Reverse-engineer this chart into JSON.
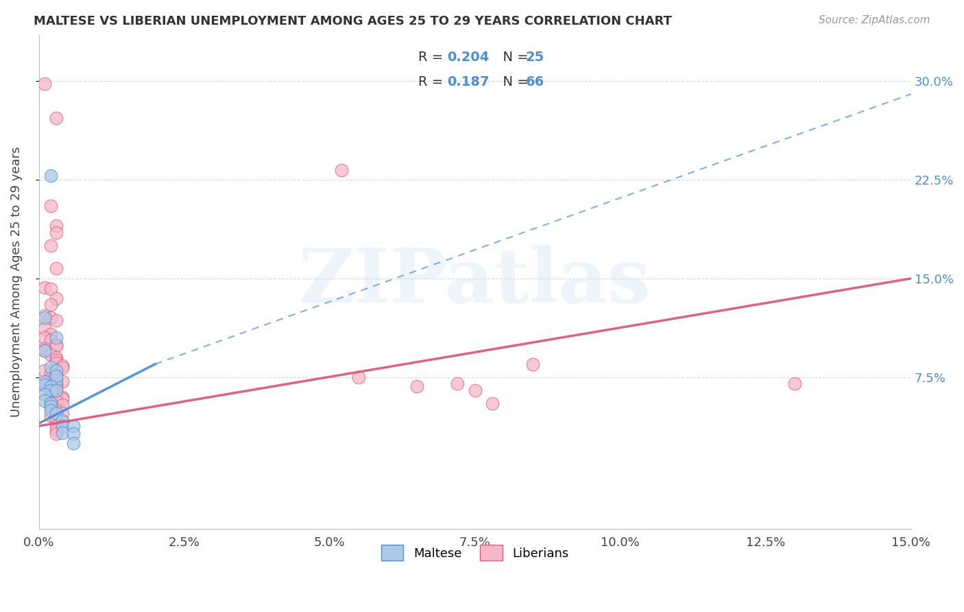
{
  "title": "MALTESE VS LIBERIAN UNEMPLOYMENT AMONG AGES 25 TO 29 YEARS CORRELATION CHART",
  "source": "Source: ZipAtlas.com",
  "ylabel": "Unemployment Among Ages 25 to 29 years",
  "xlim": [
    0.0,
    0.15
  ],
  "ylim": [
    -0.04,
    0.335
  ],
  "yticks": [
    0.075,
    0.15,
    0.225,
    0.3
  ],
  "ytick_labels": [
    "7.5%",
    "15.0%",
    "22.5%",
    "30.0%"
  ],
  "xtick_positions": [
    0.0,
    0.025,
    0.05,
    0.075,
    0.1,
    0.125,
    0.15
  ],
  "xtick_labels": [
    "0.0%",
    "2.5%",
    "5.0%",
    "7.5%",
    "10.0%",
    "12.5%",
    "15.0%"
  ],
  "maltese_R": 0.204,
  "maltese_N": 25,
  "liberian_R": 0.187,
  "liberian_N": 66,
  "maltese_fill_color": "#adc8e8",
  "liberian_fill_color": "#f5b8c8",
  "maltese_line_color": "#4a8fd4",
  "liberian_line_color": "#e05878",
  "watermark": "ZIPatlas",
  "watermark_color": "#c8dff0",
  "background_color": "#ffffff",
  "grid_color": "#cccccc",
  "maltese_line_x": [
    0.0,
    0.15
  ],
  "maltese_line_y": [
    0.04,
    0.29
  ],
  "liberian_line_x": [
    0.0,
    0.15
  ],
  "liberian_line_y": [
    0.038,
    0.15
  ],
  "maltese_scatter": [
    [
      0.001,
      0.095
    ],
    [
      0.002,
      0.228
    ],
    [
      0.003,
      0.105
    ],
    [
      0.001,
      0.12
    ],
    [
      0.002,
      0.083
    ],
    [
      0.003,
      0.08
    ],
    [
      0.003,
      0.073
    ],
    [
      0.003,
      0.076
    ],
    [
      0.001,
      0.072
    ],
    [
      0.001,
      0.069
    ],
    [
      0.002,
      0.068
    ],
    [
      0.002,
      0.065
    ],
    [
      0.003,
      0.065
    ],
    [
      0.001,
      0.062
    ],
    [
      0.001,
      0.057
    ],
    [
      0.002,
      0.055
    ],
    [
      0.002,
      0.053
    ],
    [
      0.002,
      0.05
    ],
    [
      0.003,
      0.048
    ],
    [
      0.004,
      0.042
    ],
    [
      0.004,
      0.038
    ],
    [
      0.006,
      0.038
    ],
    [
      0.004,
      0.033
    ],
    [
      0.006,
      0.032
    ],
    [
      0.006,
      0.025
    ]
  ],
  "liberian_scatter": [
    [
      0.001,
      0.298
    ],
    [
      0.003,
      0.272
    ],
    [
      0.002,
      0.205
    ],
    [
      0.003,
      0.19
    ],
    [
      0.003,
      0.185
    ],
    [
      0.002,
      0.175
    ],
    [
      0.003,
      0.158
    ],
    [
      0.001,
      0.143
    ],
    [
      0.002,
      0.142
    ],
    [
      0.003,
      0.135
    ],
    [
      0.002,
      0.13
    ],
    [
      0.001,
      0.122
    ],
    [
      0.002,
      0.12
    ],
    [
      0.003,
      0.118
    ],
    [
      0.001,
      0.112
    ],
    [
      0.002,
      0.108
    ],
    [
      0.001,
      0.105
    ],
    [
      0.002,
      0.103
    ],
    [
      0.003,
      0.1
    ],
    [
      0.003,
      0.099
    ],
    [
      0.001,
      0.097
    ],
    [
      0.001,
      0.095
    ],
    [
      0.002,
      0.092
    ],
    [
      0.003,
      0.09
    ],
    [
      0.003,
      0.088
    ],
    [
      0.003,
      0.086
    ],
    [
      0.004,
      0.084
    ],
    [
      0.004,
      0.082
    ],
    [
      0.001,
      0.08
    ],
    [
      0.002,
      0.078
    ],
    [
      0.003,
      0.076
    ],
    [
      0.003,
      0.075
    ],
    [
      0.002,
      0.074
    ],
    [
      0.003,
      0.073
    ],
    [
      0.002,
      0.072
    ],
    [
      0.004,
      0.072
    ],
    [
      0.001,
      0.07
    ],
    [
      0.003,
      0.069
    ],
    [
      0.003,
      0.068
    ],
    [
      0.002,
      0.067
    ],
    [
      0.003,
      0.065
    ],
    [
      0.002,
      0.063
    ],
    [
      0.003,
      0.062
    ],
    [
      0.004,
      0.06
    ],
    [
      0.004,
      0.059
    ],
    [
      0.002,
      0.058
    ],
    [
      0.003,
      0.057
    ],
    [
      0.002,
      0.055
    ],
    [
      0.004,
      0.054
    ],
    [
      0.002,
      0.052
    ],
    [
      0.003,
      0.05
    ],
    [
      0.004,
      0.048
    ],
    [
      0.002,
      0.046
    ],
    [
      0.003,
      0.043
    ],
    [
      0.004,
      0.041
    ],
    [
      0.003,
      0.038
    ],
    [
      0.003,
      0.035
    ],
    [
      0.003,
      0.032
    ],
    [
      0.052,
      0.232
    ],
    [
      0.055,
      0.075
    ],
    [
      0.065,
      0.068
    ],
    [
      0.072,
      0.07
    ],
    [
      0.075,
      0.065
    ],
    [
      0.078,
      0.055
    ],
    [
      0.085,
      0.085
    ],
    [
      0.13,
      0.07
    ]
  ]
}
